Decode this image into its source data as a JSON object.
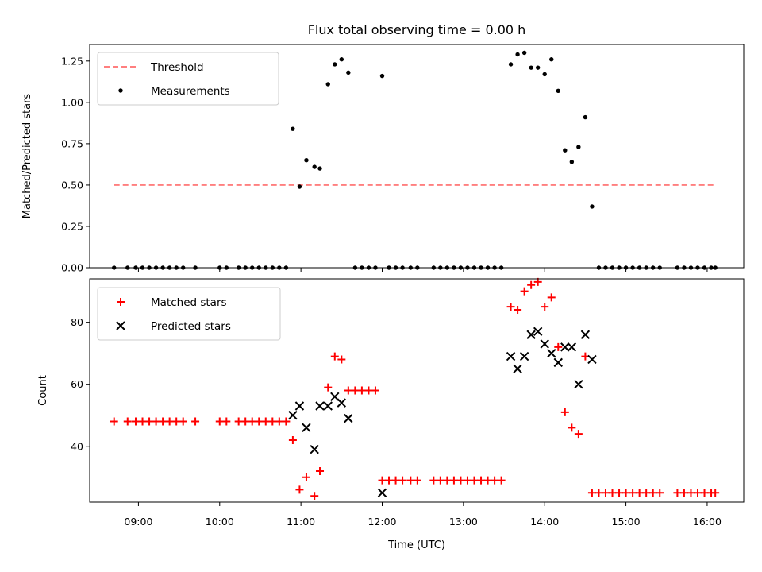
{
  "chart_data": {
    "title": "Flux total observing time = 0.00 h",
    "xlabel": "Time (UTC)",
    "x_ticks": [
      "09:00",
      "10:00",
      "11:00",
      "12:00",
      "13:00",
      "14:00",
      "15:00",
      "16:00"
    ],
    "xlim": [
      "08:24",
      "16:27"
    ],
    "panels": [
      {
        "type": "scatter",
        "ylabel": "Matched/Predicted stars",
        "ylim": [
          0,
          1.35
        ],
        "y_ticks": [
          "0.00",
          "0.25",
          "0.50",
          "0.75",
          "1.00",
          "1.25"
        ],
        "legend_position": "top-left",
        "threshold": {
          "name": "Threshold",
          "value": 0.5,
          "x_range": [
            "08:42",
            "16:06"
          ],
          "color": "#ff7f7f"
        },
        "series": [
          {
            "name": "Measurements",
            "color": "#000000",
            "marker": "dot",
            "points": [
              [
                "08:42",
                0
              ],
              [
                "08:52",
                0
              ],
              [
                "08:58",
                0
              ],
              [
                "09:03",
                0
              ],
              [
                "09:08",
                0
              ],
              [
                "09:13",
                0
              ],
              [
                "09:18",
                0
              ],
              [
                "09:23",
                0
              ],
              [
                "09:28",
                0
              ],
              [
                "09:33",
                0
              ],
              [
                "09:42",
                0
              ],
              [
                "10:00",
                0
              ],
              [
                "10:05",
                0
              ],
              [
                "10:14",
                0
              ],
              [
                "10:19",
                0
              ],
              [
                "10:24",
                0
              ],
              [
                "10:29",
                0
              ],
              [
                "10:34",
                0
              ],
              [
                "10:39",
                0
              ],
              [
                "10:44",
                0
              ],
              [
                "10:49",
                0
              ],
              [
                "10:54",
                0.84
              ],
              [
                "10:59",
                0.49
              ],
              [
                "11:04",
                0.65
              ],
              [
                "11:10",
                0.61
              ],
              [
                "11:14",
                0.6
              ],
              [
                "11:20",
                1.11
              ],
              [
                "11:25",
                1.23
              ],
              [
                "11:30",
                1.26
              ],
              [
                "11:35",
                1.18
              ],
              [
                "11:40",
                0
              ],
              [
                "11:45",
                0
              ],
              [
                "11:50",
                0
              ],
              [
                "11:55",
                0
              ],
              [
                "12:00",
                1.16
              ],
              [
                "12:05",
                0
              ],
              [
                "12:10",
                0
              ],
              [
                "12:15",
                0
              ],
              [
                "12:21",
                0
              ],
              [
                "12:26",
                0
              ],
              [
                "12:38",
                0
              ],
              [
                "12:43",
                0
              ],
              [
                "12:48",
                0
              ],
              [
                "12:53",
                0
              ],
              [
                "12:58",
                0
              ],
              [
                "13:03",
                0
              ],
              [
                "13:08",
                0
              ],
              [
                "13:13",
                0
              ],
              [
                "13:18",
                0
              ],
              [
                "13:23",
                0
              ],
              [
                "13:28",
                0
              ],
              [
                "13:35",
                1.23
              ],
              [
                "13:40",
                1.29
              ],
              [
                "13:45",
                1.3
              ],
              [
                "13:50",
                1.21
              ],
              [
                "13:55",
                1.21
              ],
              [
                "14:00",
                1.17
              ],
              [
                "14:05",
                1.26
              ],
              [
                "14:10",
                1.07
              ],
              [
                "14:15",
                0.71
              ],
              [
                "14:20",
                0.64
              ],
              [
                "14:25",
                0.73
              ],
              [
                "14:30",
                0.91
              ],
              [
                "14:35",
                0.37
              ],
              [
                "14:40",
                0
              ],
              [
                "14:45",
                0
              ],
              [
                "14:50",
                0
              ],
              [
                "14:55",
                0
              ],
              [
                "15:00",
                0
              ],
              [
                "15:05",
                0
              ],
              [
                "15:10",
                0
              ],
              [
                "15:15",
                0
              ],
              [
                "15:20",
                0
              ],
              [
                "15:25",
                0
              ],
              [
                "15:38",
                0
              ],
              [
                "15:43",
                0
              ],
              [
                "15:48",
                0
              ],
              [
                "15:53",
                0
              ],
              [
                "15:58",
                0
              ],
              [
                "16:03",
                0
              ],
              [
                "16:06",
                0
              ]
            ]
          }
        ]
      },
      {
        "type": "scatter",
        "ylabel": "Count",
        "ylim": [
          22,
          94
        ],
        "y_ticks": [
          "40",
          "60",
          "80"
        ],
        "legend_position": "top-left",
        "series": [
          {
            "name": "Matched stars",
            "color": "#ff0000",
            "marker": "plus",
            "points": [
              [
                "08:42",
                48
              ],
              [
                "08:52",
                48
              ],
              [
                "08:58",
                48
              ],
              [
                "09:03",
                48
              ],
              [
                "09:08",
                48
              ],
              [
                "09:13",
                48
              ],
              [
                "09:18",
                48
              ],
              [
                "09:23",
                48
              ],
              [
                "09:28",
                48
              ],
              [
                "09:33",
                48
              ],
              [
                "09:42",
                48
              ],
              [
                "10:00",
                48
              ],
              [
                "10:05",
                48
              ],
              [
                "10:14",
                48
              ],
              [
                "10:19",
                48
              ],
              [
                "10:24",
                48
              ],
              [
                "10:29",
                48
              ],
              [
                "10:34",
                48
              ],
              [
                "10:39",
                48
              ],
              [
                "10:44",
                48
              ],
              [
                "10:49",
                48
              ],
              [
                "10:54",
                42
              ],
              [
                "10:59",
                26
              ],
              [
                "11:04",
                30
              ],
              [
                "11:10",
                24
              ],
              [
                "11:14",
                32
              ],
              [
                "11:20",
                59
              ],
              [
                "11:25",
                69
              ],
              [
                "11:30",
                68
              ],
              [
                "11:35",
                58
              ],
              [
                "11:40",
                58
              ],
              [
                "11:45",
                58
              ],
              [
                "11:50",
                58
              ],
              [
                "11:55",
                58
              ],
              [
                "12:00",
                29
              ],
              [
                "12:05",
                29
              ],
              [
                "12:10",
                29
              ],
              [
                "12:15",
                29
              ],
              [
                "12:21",
                29
              ],
              [
                "12:26",
                29
              ],
              [
                "12:38",
                29
              ],
              [
                "12:43",
                29
              ],
              [
                "12:48",
                29
              ],
              [
                "12:53",
                29
              ],
              [
                "12:58",
                29
              ],
              [
                "13:03",
                29
              ],
              [
                "13:08",
                29
              ],
              [
                "13:13",
                29
              ],
              [
                "13:18",
                29
              ],
              [
                "13:23",
                29
              ],
              [
                "13:28",
                29
              ],
              [
                "13:35",
                85
              ],
              [
                "13:40",
                84
              ],
              [
                "13:45",
                90
              ],
              [
                "13:50",
                92
              ],
              [
                "13:55",
                93
              ],
              [
                "14:00",
                85
              ],
              [
                "14:05",
                88
              ],
              [
                "14:10",
                72
              ],
              [
                "14:15",
                51
              ],
              [
                "14:20",
                46
              ],
              [
                "14:25",
                44
              ],
              [
                "14:30",
                69
              ],
              [
                "14:35",
                25
              ],
              [
                "14:40",
                25
              ],
              [
                "14:45",
                25
              ],
              [
                "14:50",
                25
              ],
              [
                "14:55",
                25
              ],
              [
                "15:00",
                25
              ],
              [
                "15:05",
                25
              ],
              [
                "15:10",
                25
              ],
              [
                "15:15",
                25
              ],
              [
                "15:20",
                25
              ],
              [
                "15:25",
                25
              ],
              [
                "15:38",
                25
              ],
              [
                "15:43",
                25
              ],
              [
                "15:48",
                25
              ],
              [
                "15:53",
                25
              ],
              [
                "15:58",
                25
              ],
              [
                "16:03",
                25
              ],
              [
                "16:06",
                25
              ]
            ]
          },
          {
            "name": "Predicted stars",
            "color": "#000000",
            "marker": "x",
            "points": [
              [
                "10:54",
                50
              ],
              [
                "10:59",
                53
              ],
              [
                "11:04",
                46
              ],
              [
                "11:10",
                39
              ],
              [
                "11:14",
                53
              ],
              [
                "11:20",
                53
              ],
              [
                "11:25",
                56
              ],
              [
                "11:30",
                54
              ],
              [
                "11:35",
                49
              ],
              [
                "12:00",
                25
              ],
              [
                "13:35",
                69
              ],
              [
                "13:40",
                65
              ],
              [
                "13:45",
                69
              ],
              [
                "13:50",
                76
              ],
              [
                "13:55",
                77
              ],
              [
                "14:00",
                73
              ],
              [
                "14:05",
                70
              ],
              [
                "14:10",
                67
              ],
              [
                "14:15",
                72
              ],
              [
                "14:20",
                72
              ],
              [
                "14:25",
                60
              ],
              [
                "14:30",
                76
              ],
              [
                "14:35",
                68
              ]
            ]
          }
        ]
      }
    ]
  }
}
